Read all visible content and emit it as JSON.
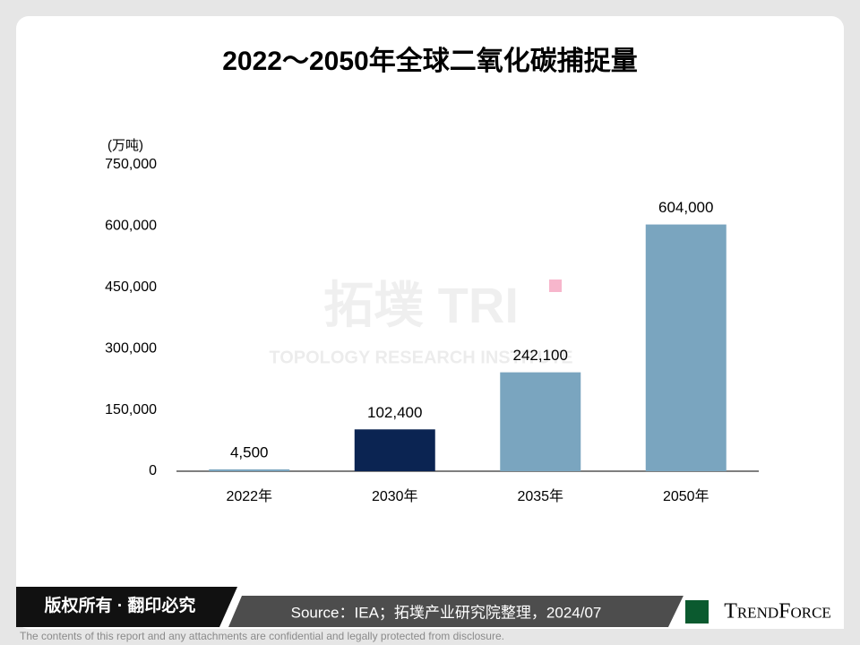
{
  "chart_data": {
    "type": "bar",
    "title": "2022～2050年全球二氧化碳捕捉量",
    "y_label": "(万吨)",
    "categories": [
      "2022年",
      "2030年",
      "2035年",
      "2050年"
    ],
    "values": [
      4500,
      102400,
      242100,
      604000
    ],
    "value_labels": [
      "4,500",
      "102,400",
      "242,100",
      "604,000"
    ],
    "colors": [
      "#7aa5bf",
      "#0b2452",
      "#7aa5bf",
      "#7aa5bf"
    ],
    "ylim": [
      0,
      750000
    ],
    "yticks": [
      0,
      {
        "value": 150000,
        "label": "150,000"
      },
      {
        "value": 300000,
        "label": "300,000"
      },
      {
        "value": 450000,
        "label": "450,000"
      },
      {
        "value": 600000,
        "label": "600,000"
      },
      {
        "value": 750000,
        "label": "750,000"
      }
    ],
    "grid": false
  },
  "watermark": {
    "logo": "拓墣 TRI",
    "name": "TOPOLOGY RESEARCH INSTITUTE"
  },
  "footer": {
    "copyright": "版权所有 · 翻印必究",
    "source": "Source：IEA；拓墣产业研究院整理，2024/07",
    "brand": "TrendForce",
    "disclaimer": "The contents of this report and any attachments are confidential and legally protected from disclosure."
  }
}
